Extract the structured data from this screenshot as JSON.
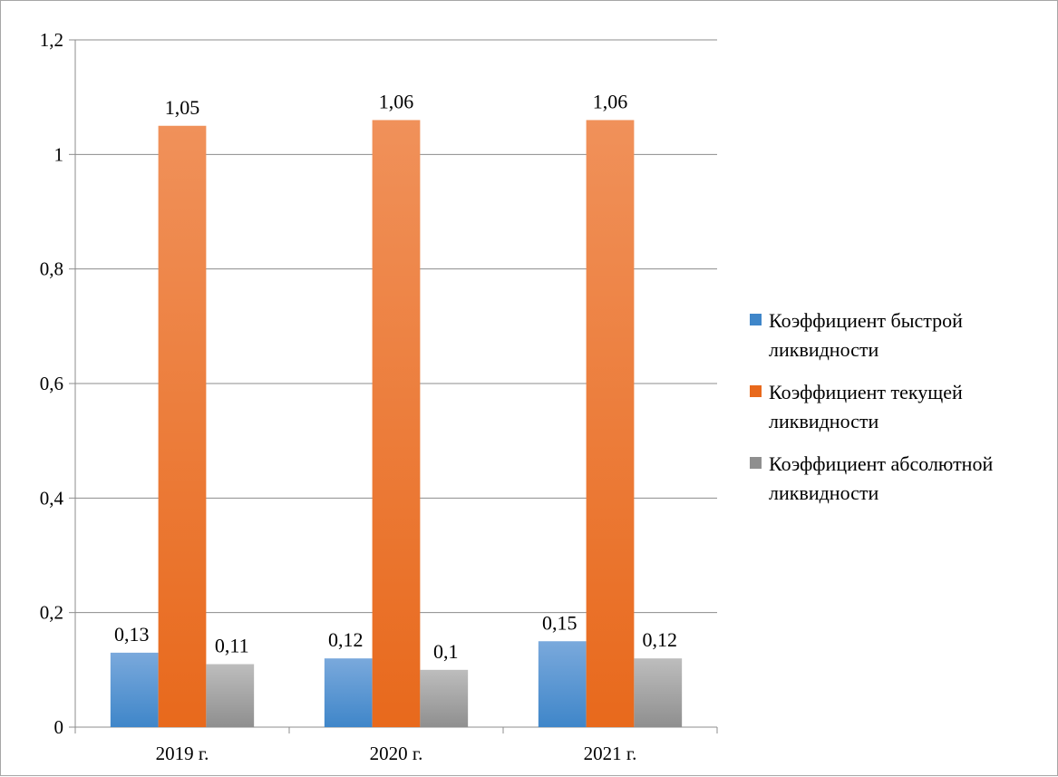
{
  "chart_data": {
    "type": "bar",
    "categories": [
      "2019 г.",
      "2020 г.",
      "2021 г."
    ],
    "series": [
      {
        "name": "Коэффициент быстрой ликвидности",
        "values": [
          0.13,
          0.12,
          0.15
        ],
        "labels": [
          "0,13",
          "0,12",
          "0,15"
        ],
        "color_top": "#7aa9dc",
        "color_bottom": "#3f86c9",
        "legend_lines": [
          "Коэффициент быстрой",
          "ликвидности"
        ]
      },
      {
        "name": "Коэффициент текущей ликвидности",
        "values": [
          1.05,
          1.06,
          1.06
        ],
        "labels": [
          "1,05",
          "1,06",
          "1,06"
        ],
        "color_top": "#f0915a",
        "color_bottom": "#e8691c",
        "legend_lines": [
          "Коэффициент текущей",
          "ликвидности"
        ]
      },
      {
        "name": "Коэффициент абсолютной ликвидности",
        "values": [
          0.11,
          0.1,
          0.12
        ],
        "labels": [
          "0,11",
          "0,1",
          "0,12"
        ],
        "color_top": "#bdbdbd",
        "color_bottom": "#8f8f8f",
        "legend_lines": [
          "Коэффициент абсолютной",
          "ликвидности"
        ]
      }
    ],
    "ylim": [
      0,
      1.2
    ],
    "yticks": [
      0,
      0.2,
      0.4,
      0.6,
      0.8,
      1,
      1.2
    ],
    "ytick_labels": [
      "0",
      "0,2",
      "0,4",
      "0,6",
      "0,8",
      "1",
      "1,2"
    ],
    "grid": true,
    "legend_position": "right",
    "title": "",
    "xlabel": "",
    "ylabel": ""
  }
}
